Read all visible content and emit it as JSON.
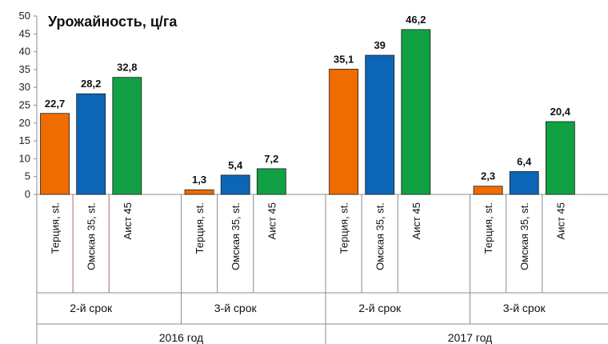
{
  "chart_data": {
    "type": "bar",
    "title": "Урожайность, ц/га",
    "ylim": [
      0,
      50
    ],
    "yticks": [
      0,
      5,
      10,
      15,
      20,
      25,
      30,
      35,
      40,
      45,
      50
    ],
    "grid": false,
    "colors": {
      "Терция, st.": "#ef6c00",
      "Омская 35, st.": "#0d66b5",
      "Аист 45": "#11a144",
      "axis": "#8c8c8c"
    },
    "groups": [
      {
        "year": "2016 год",
        "subgroups": [
          {
            "term": "2-й срок",
            "bars": [
              {
                "label": "Терция, st.",
                "value": 22.7,
                "display": "22,7"
              },
              {
                "label": "Омская 35, st.",
                "value": 28.2,
                "display": "28,2"
              },
              {
                "label": "Аист 45",
                "value": 32.8,
                "display": "32,8"
              }
            ]
          },
          {
            "term": "3-й срок",
            "bars": [
              {
                "label": "Терция, st.",
                "value": 1.3,
                "display": "1,3"
              },
              {
                "label": "Омская 35, st.",
                "value": 5.4,
                "display": "5,4"
              },
              {
                "label": "Аист 45",
                "value": 7.2,
                "display": "7,2"
              }
            ]
          }
        ]
      },
      {
        "year": "2017 год",
        "subgroups": [
          {
            "term": "2-й срок",
            "bars": [
              {
                "label": "Терция, st.",
                "value": 35.1,
                "display": "35,1"
              },
              {
                "label": "Омская 35, st.",
                "value": 39,
                "display": "39"
              },
              {
                "label": "Аист 45",
                "value": 46.2,
                "display": "46,2"
              }
            ]
          },
          {
            "term": "3-й срок",
            "bars": [
              {
                "label": "Терция, st.",
                "value": 2.3,
                "display": "2,3"
              },
              {
                "label": "Омская 35, st.",
                "value": 6.4,
                "display": "6,4"
              },
              {
                "label": "Аист 45",
                "value": 20.4,
                "display": "20,4"
              }
            ]
          }
        ]
      }
    ]
  }
}
